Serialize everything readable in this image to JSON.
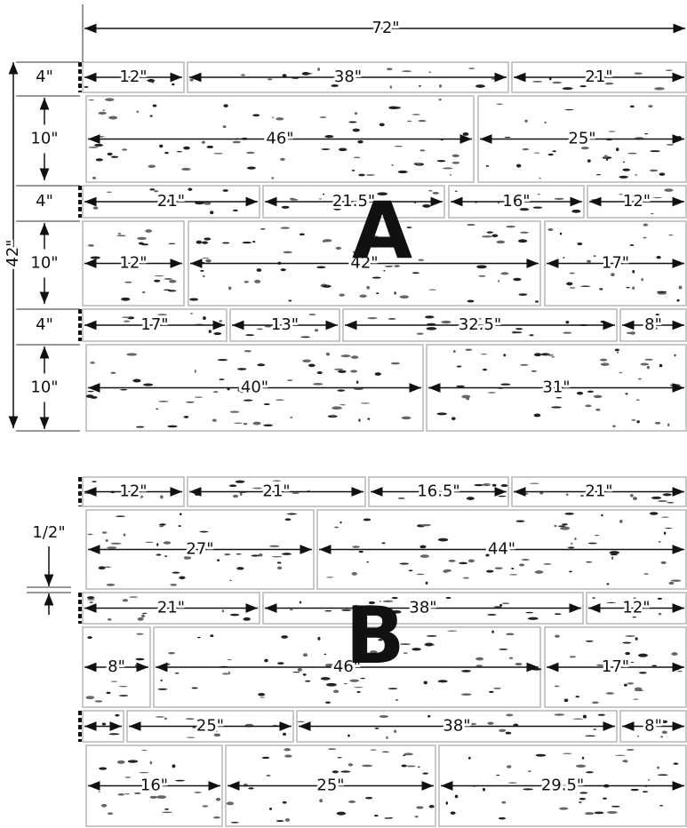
{
  "panels": [
    {
      "label": "A",
      "width": "72\"",
      "height": "42\"",
      "rows": [
        {
          "height": "4\"",
          "stones": [
            "12\"",
            "38\"",
            "21\""
          ]
        },
        {
          "height": "10\"",
          "stones": [
            "46\"",
            "25\""
          ]
        },
        {
          "height": "4\"",
          "stones": [
            "21\"",
            "21.5\"",
            "16\"",
            "12\""
          ]
        },
        {
          "height": "10\"",
          "stones": [
            "12\"",
            "42\"",
            "17\""
          ]
        },
        {
          "height": "4\"",
          "stones": [
            "17\"",
            "13\"",
            "32.5\"",
            "8\""
          ]
        },
        {
          "height": "10\"",
          "stones": [
            "40\"",
            "31\""
          ]
        }
      ]
    },
    {
      "label": "B",
      "gap": "1/2\"",
      "rows": [
        {
          "stones": [
            "12\"",
            "21\"",
            "16.5\"",
            "21\""
          ]
        },
        {
          "stones": [
            "27\"",
            "44\""
          ]
        },
        {
          "stones": [
            "21\"",
            "38\"",
            "12\""
          ]
        },
        {
          "stones": [
            "8\"",
            "46\"",
            "17\""
          ]
        },
        {
          "stones": [
            "25\"",
            "38\"",
            "8\""
          ]
        },
        {
          "stones": [
            "16\"",
            "25\"",
            "29.5\""
          ]
        }
      ]
    }
  ]
}
